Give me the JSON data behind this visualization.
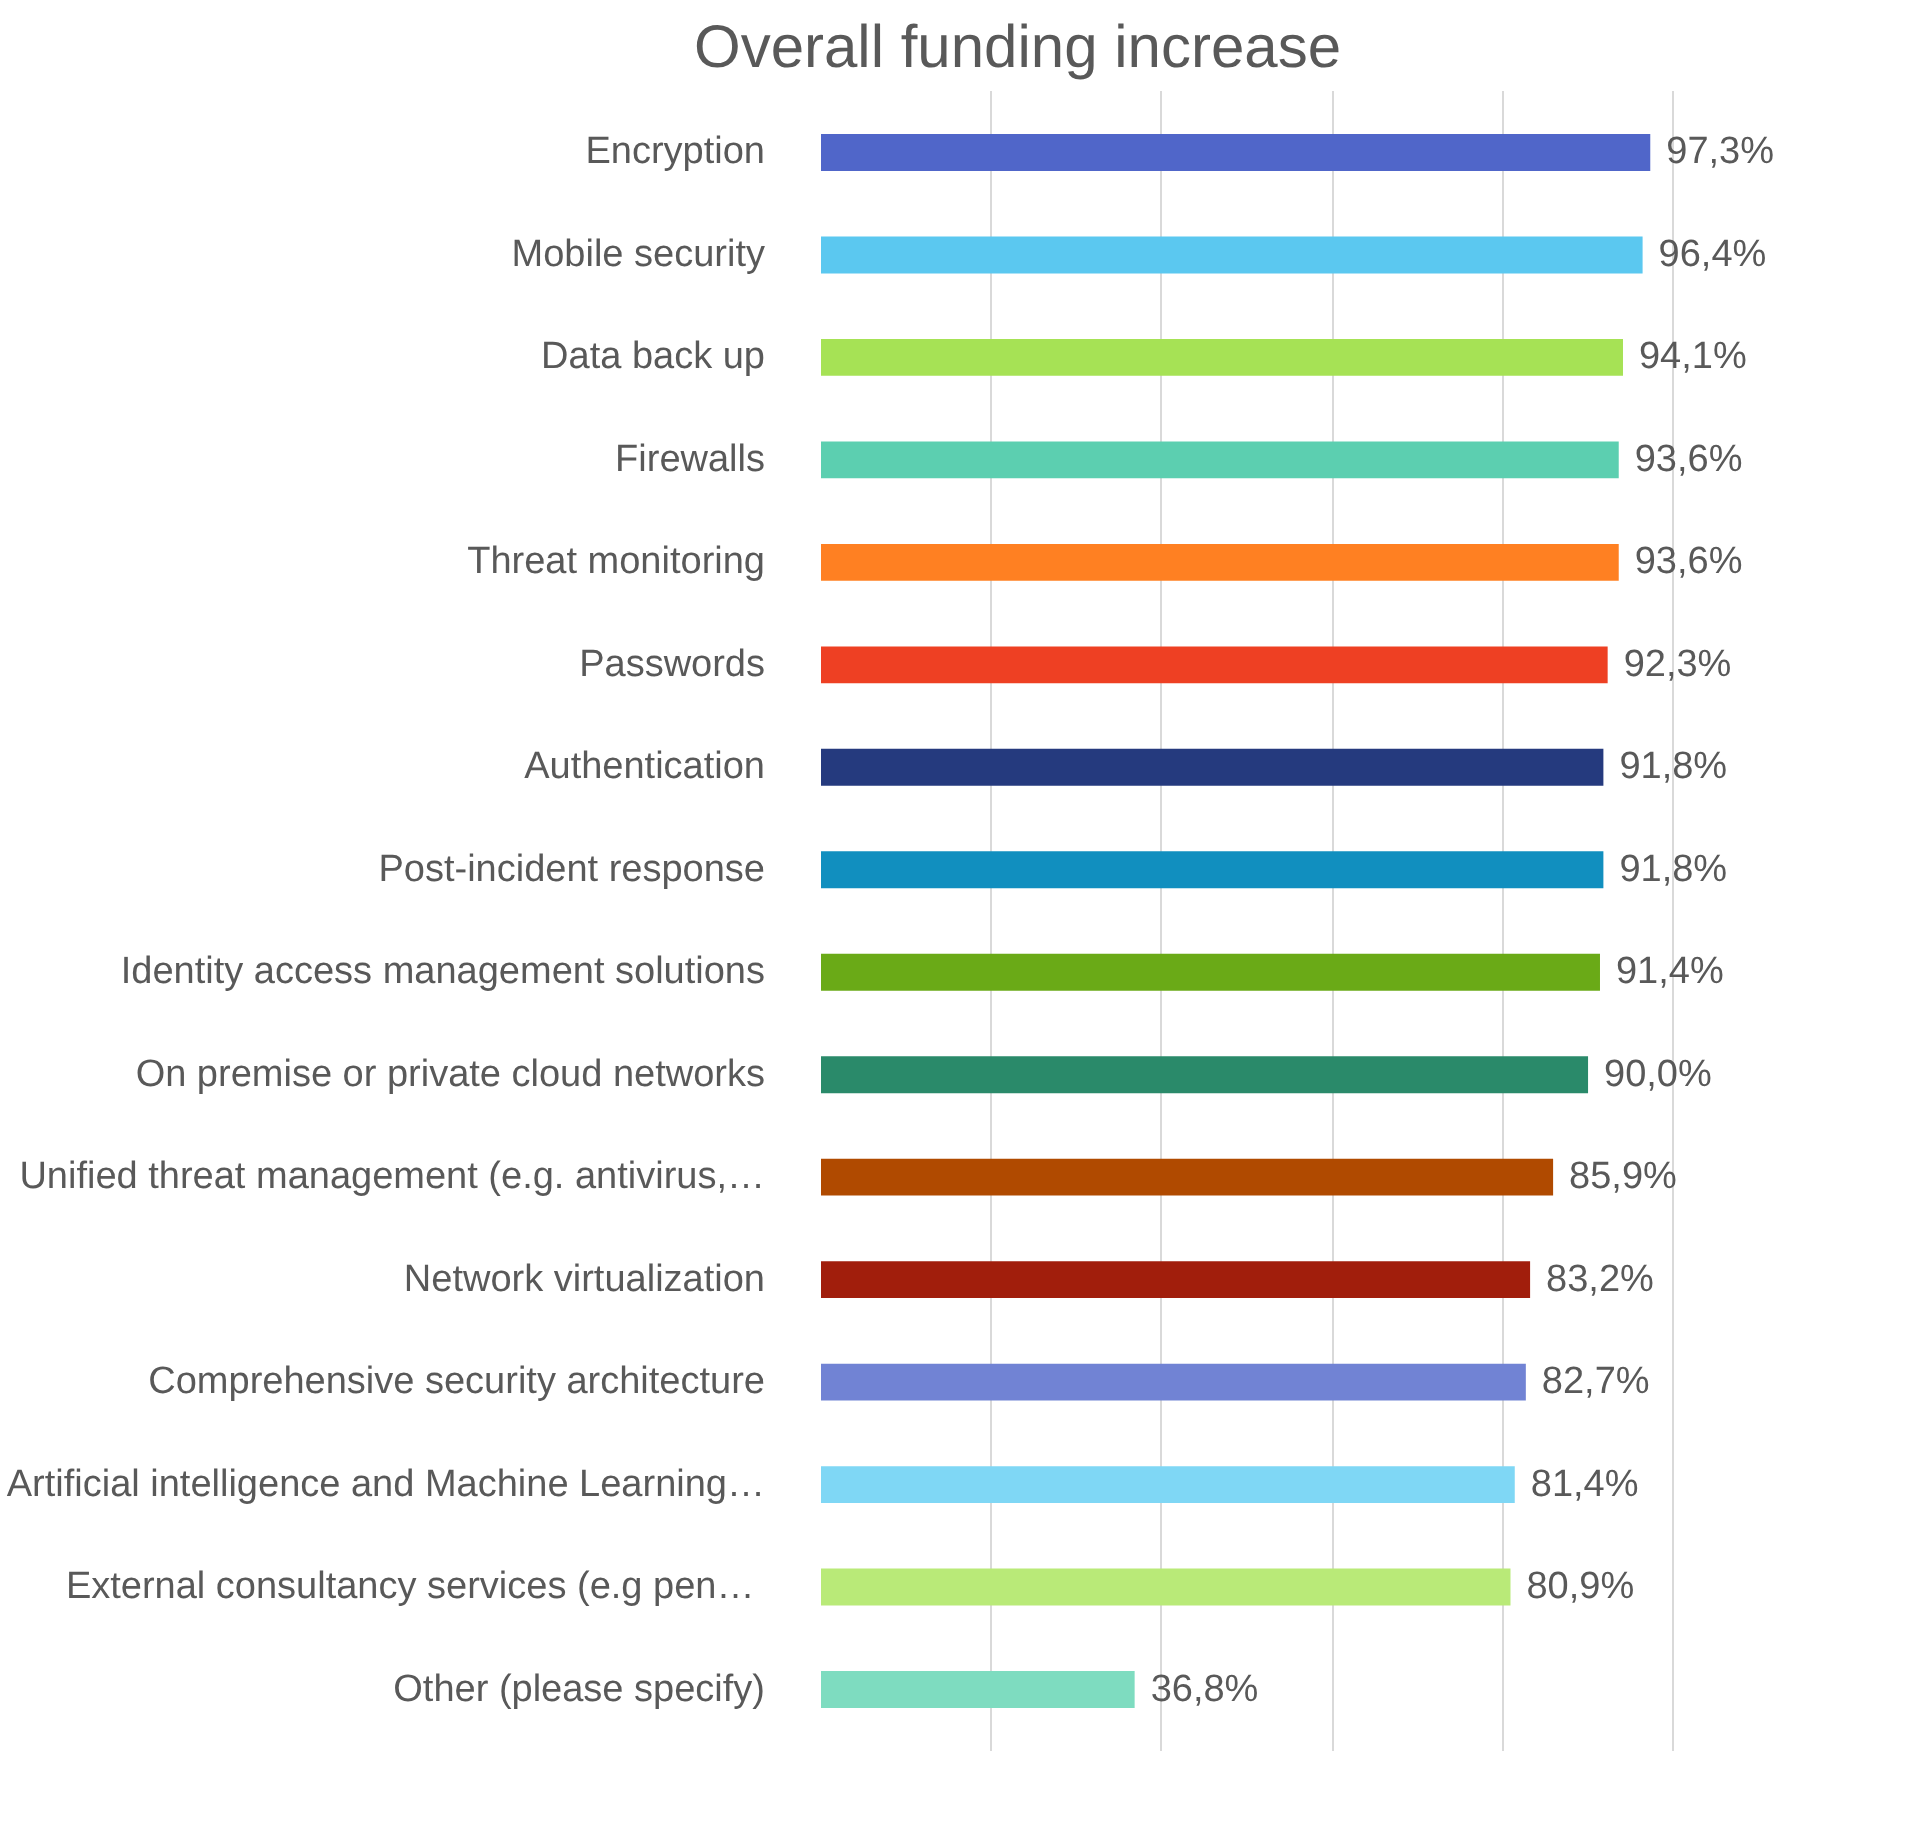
{
  "chart_data": {
    "type": "bar",
    "orientation": "horizontal",
    "title": "Overall funding increase",
    "categories": [
      "Encryption",
      "Mobile security",
      "Data back up",
      "Firewalls",
      "Threat monitoring",
      "Passwords",
      "Authentication",
      "Post-incident response",
      "Identity access management solutions",
      "On premise or private cloud networks",
      "Unified threat management (e.g. antivirus,…",
      "Network virtualization",
      "Comprehensive security architecture",
      "Artificial intelligence and Machine Learning…",
      "External  consultancy services (e.g pen…",
      "Other (please specify)"
    ],
    "values": [
      97.3,
      96.4,
      94.1,
      93.6,
      93.6,
      92.3,
      91.8,
      91.8,
      91.4,
      90.0,
      85.9,
      83.2,
      82.7,
      81.4,
      80.9,
      36.8
    ],
    "value_labels": [
      "97,3%",
      "96,4%",
      "94,1%",
      "93,6%",
      "93,6%",
      "92,3%",
      "91,8%",
      "91,8%",
      "91,4%",
      "90,0%",
      "85,9%",
      "83,2%",
      "82,7%",
      "81,4%",
      "80,9%",
      "36,8%"
    ],
    "colors": [
      "#5066c9",
      "#5bc8f0",
      "#a6e255",
      "#5ccfb0",
      "#ff8022",
      "#ee4023",
      "#253a7e",
      "#118fbf",
      "#6aaa17",
      "#2a8a6a",
      "#b04a00",
      "#a11e0c",
      "#7183d4",
      "#7fd7f5",
      "#b9ea78",
      "#7edcc0"
    ],
    "grid": "x",
    "tick_labels": "y"
  }
}
